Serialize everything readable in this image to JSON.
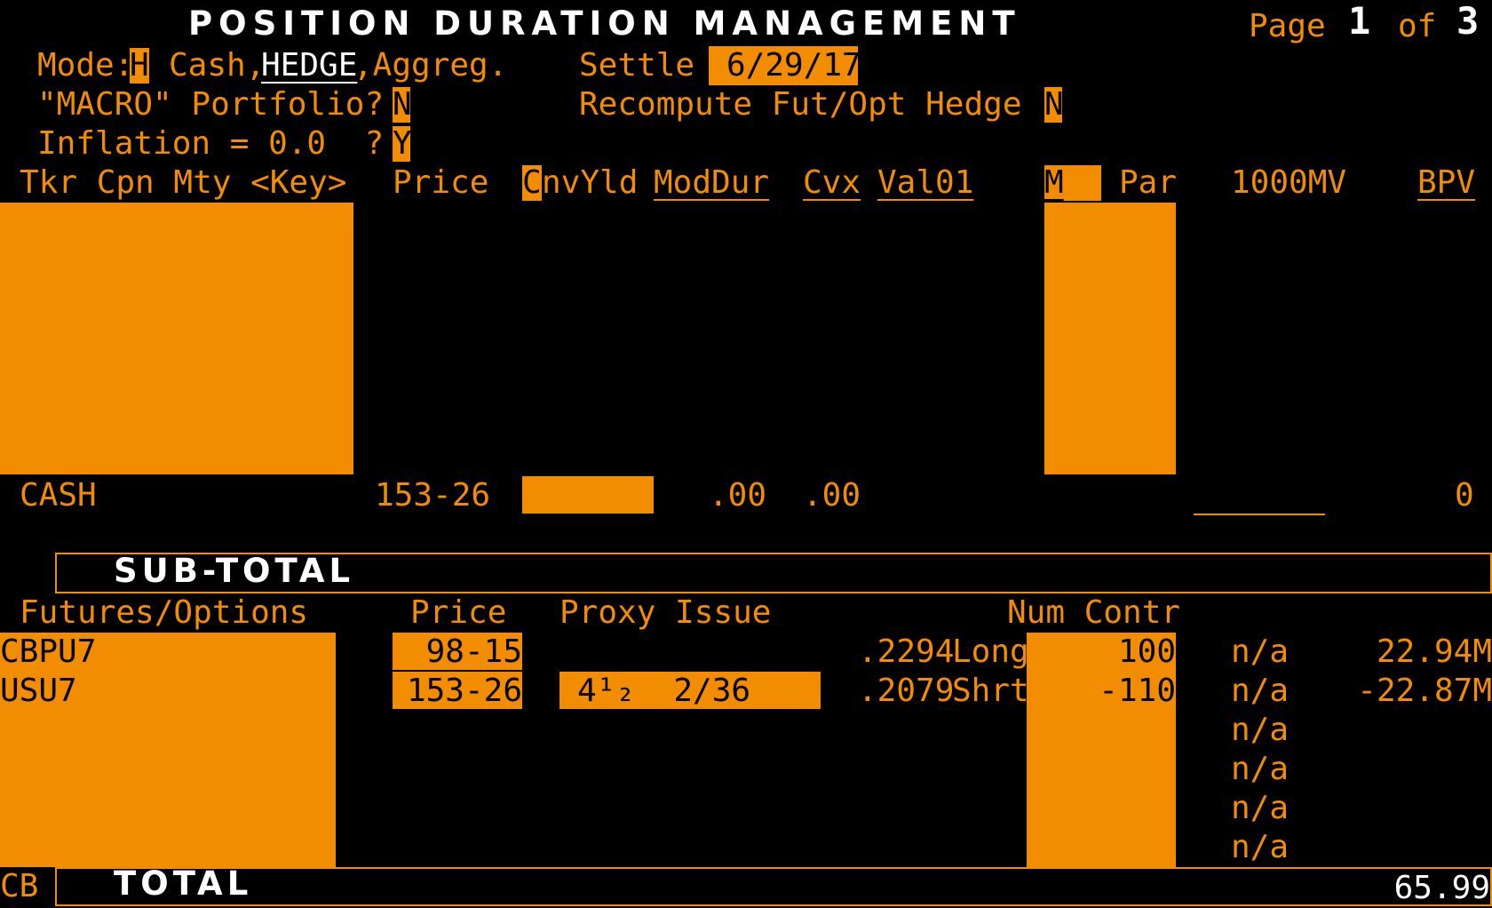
{
  "header": {
    "title": "POSITION DURATION MANAGEMENT",
    "page_label": "Page",
    "page_num": "1",
    "of_label": "of",
    "page_total": "3"
  },
  "mode": {
    "label": "Mode:",
    "value": "H",
    "opt_cash": "Cash,",
    "opt_hedge": "HEDGE",
    "opt_aggreg": ",Aggreg."
  },
  "settle": {
    "label": "Settle",
    "value": "6/29/17"
  },
  "macro": {
    "label": "\"MACRO\" Portfolio?",
    "value": "N"
  },
  "recompute": {
    "label": "Recompute Fut/Opt Hedge",
    "value": "N"
  },
  "inflation": {
    "label": "Inflation = 0.0  ?",
    "value": "Y"
  },
  "columns": {
    "tkr": "Tkr Cpn Mty <Key>",
    "price": "Price",
    "cnv_c": "C",
    "cnv_rest": "nvYld",
    "moddur": "ModDur",
    "cvx": "Cvx",
    "val01": "Val01",
    "m": "M",
    "par": "Par",
    "mv": "1000MV",
    "bpv": "BPV"
  },
  "cash_row": {
    "name": "CASH",
    "price": "153-26",
    "moddur": ".00",
    "cvx": ".00",
    "bpv": "0"
  },
  "subtotal": {
    "label": "SUB-TOTAL"
  },
  "futures_header": {
    "name": "Futures/Options",
    "price": "Price",
    "proxy": "Proxy Issue",
    "num": "Num Contr"
  },
  "futures": [
    {
      "ticker": "CBPU7",
      "price": "98-15",
      "proxy": "",
      "ratio": ".2294",
      "side": "Long",
      "contracts": "100",
      "mv": "n/a",
      "bpv": "22.94M"
    },
    {
      "ticker": "USU7",
      "price": "153-26",
      "proxy": "4¹₂  2/36",
      "ratio": ".2079",
      "side": "Shrt",
      "contracts": "-110",
      "mv": "n/a",
      "bpv": "-22.87M"
    },
    {
      "ticker": "",
      "price": "",
      "proxy": "",
      "ratio": "",
      "side": "",
      "contracts": "",
      "mv": "n/a",
      "bpv": ""
    },
    {
      "ticker": "",
      "price": "",
      "proxy": "",
      "ratio": "",
      "side": "",
      "contracts": "",
      "mv": "n/a",
      "bpv": ""
    },
    {
      "ticker": "",
      "price": "",
      "proxy": "",
      "ratio": "",
      "side": "",
      "contracts": "",
      "mv": "n/a",
      "bpv": ""
    },
    {
      "ticker": "",
      "price": "",
      "proxy": "",
      "ratio": "",
      "side": "",
      "contracts": "",
      "mv": "n/a",
      "bpv": ""
    }
  ],
  "footer": {
    "prefix": "CB",
    "total_label": "TOTAL",
    "total_value": "65.99"
  },
  "colors": {
    "amber": "#f28c00",
    "background": "#000000",
    "title": "#ffffff"
  }
}
